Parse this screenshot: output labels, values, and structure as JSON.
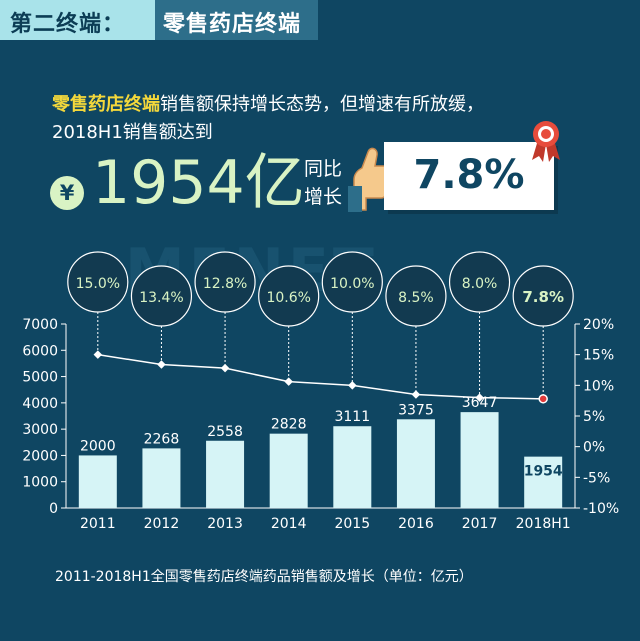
{
  "header": {
    "tag_left": "第二终端：",
    "tag_right": "零售药店终端"
  },
  "intro": {
    "highlight": "零售药店终端",
    "line1_rest": "销售额保持增长态势，但增速有所放缓，",
    "line2": "2018H1销售额达到"
  },
  "headline": {
    "currency_symbol": "¥",
    "amount": "1954亿",
    "yoy_label_line1": "同比",
    "yoy_label_line2": "增长",
    "growth": "7.8%"
  },
  "watermark": "MENET",
  "caption": "2011-2018H1全国零售药店终端药品销售额及增长（单位：亿元）",
  "colors": {
    "background": "#0f4662",
    "bar": "#d6f4f6",
    "bar_label": "#ffffff",
    "bar_label_highlight": "#d9f3c4",
    "bubble": "#123a50",
    "bubble_text": "#d9f3c4",
    "line": "#ffffff",
    "highlight_marker": "#e03a3a"
  },
  "icons": {
    "currency": "yen-badge-icon",
    "hand": "thumbs-hand-icon",
    "rosette": "award-rosette-icon"
  },
  "chart_data": {
    "type": "bar",
    "categories": [
      "2011",
      "2012",
      "2013",
      "2014",
      "2015",
      "2016",
      "2017",
      "2018H1"
    ],
    "series": [
      {
        "type": "bar",
        "axis": "left",
        "values": [
          2000,
          2268,
          2558,
          2828,
          3111,
          3375,
          3647,
          1954
        ],
        "data_labels": [
          "2000",
          "2268",
          "2558",
          "2828",
          "3111",
          "3375",
          "3647",
          "1954"
        ]
      },
      {
        "type": "line",
        "axis": "right",
        "values": [
          15.0,
          13.4,
          12.8,
          10.6,
          10.0,
          8.5,
          8.0,
          7.8
        ],
        "data_labels": [
          "15.0%",
          "13.4%",
          "12.8%",
          "10.6%",
          "10.0%",
          "8.5%",
          "8.0%",
          "7.8%"
        ]
      }
    ],
    "left_axis": {
      "ylim": [
        0,
        7000
      ],
      "ticks": [
        "0",
        "1000",
        "2000",
        "3000",
        "4000",
        "5000",
        "6000",
        "7000"
      ]
    },
    "right_axis": {
      "ylim": [
        -10,
        20
      ],
      "ticks": [
        "-10%",
        "-5%",
        "0%",
        "5%",
        "10%",
        "15%",
        "20%"
      ]
    },
    "highlight_index": 7,
    "grid": false
  }
}
